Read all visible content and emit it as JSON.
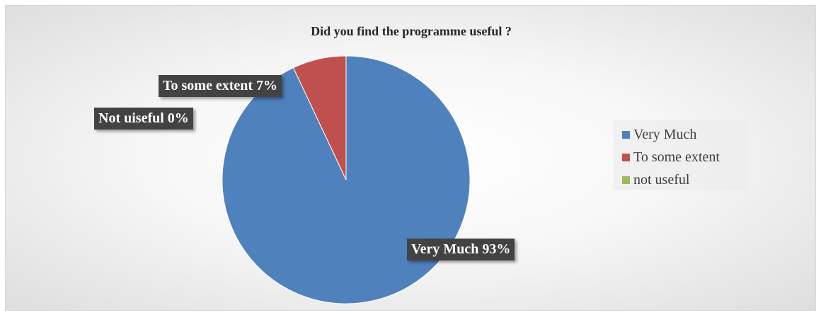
{
  "chart_data": {
    "type": "pie",
    "title": "Did you find the programme useful ?",
    "categories": [
      "Very Much",
      "To some extent",
      "not useful"
    ],
    "values": [
      93,
      7,
      0
    ],
    "colors": [
      "#4f81bd",
      "#c0504d",
      "#9bbb59"
    ],
    "data_labels": [
      "Very Much 93%",
      "To some extent 7%",
      "Not uiseful 0%"
    ],
    "legend": {
      "position": "right"
    }
  }
}
